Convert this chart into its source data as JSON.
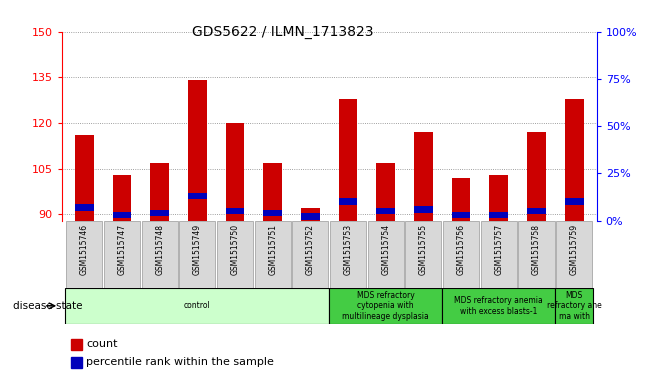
{
  "title": "GDS5622 / ILMN_1713823",
  "samples": [
    "GSM1515746",
    "GSM1515747",
    "GSM1515748",
    "GSM1515749",
    "GSM1515750",
    "GSM1515751",
    "GSM1515752",
    "GSM1515753",
    "GSM1515754",
    "GSM1515755",
    "GSM1515756",
    "GSM1515757",
    "GSM1515758",
    "GSM1515759"
  ],
  "count_values": [
    116,
    103,
    107,
    134,
    120,
    107,
    92,
    128,
    107,
    117,
    102,
    103,
    117,
    128
  ],
  "percentile_values": [
    7,
    3,
    4,
    13,
    5,
    4,
    2,
    10,
    5,
    6,
    3,
    3,
    5,
    10
  ],
  "baseline": 88,
  "ylim_left": [
    88,
    150
  ],
  "ylim_right": [
    0,
    100
  ],
  "yticks_left": [
    90,
    105,
    120,
    135,
    150
  ],
  "yticks_right": [
    0,
    25,
    50,
    75,
    100
  ],
  "bar_color": "#cc0000",
  "percentile_color": "#0000bb",
  "bar_width": 0.5,
  "groups": [
    {
      "label": "control",
      "start": 0,
      "end": 7,
      "color": "#ccffcc"
    },
    {
      "label": "MDS refractory\ncytopenia with\nmultilineage dysplasia",
      "start": 7,
      "end": 10,
      "color": "#44cc44"
    },
    {
      "label": "MDS refractory anemia\nwith excess blasts-1",
      "start": 10,
      "end": 13,
      "color": "#44cc44"
    },
    {
      "label": "MDS\nrefractory ane\nma with",
      "start": 13,
      "end": 14,
      "color": "#44cc44"
    }
  ],
  "disease_state_label": "disease state",
  "legend_count_label": "count",
  "legend_pct_label": "percentile rank within the sample"
}
